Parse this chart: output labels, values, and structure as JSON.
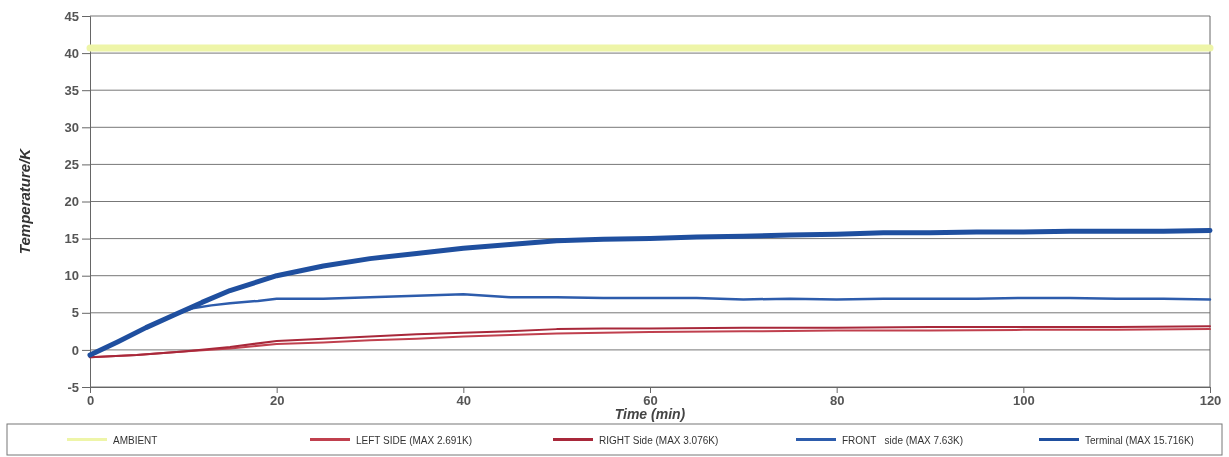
{
  "chart_data": {
    "type": "line",
    "xlabel": "Time (min)",
    "ylabel": "Temperature/K",
    "xlim": [
      0,
      120
    ],
    "xticks": [
      0,
      20,
      40,
      60,
      80,
      100,
      120
    ],
    "ylim": [
      -5,
      45
    ],
    "yticks": [
      -5,
      0,
      5,
      10,
      15,
      20,
      25,
      30,
      35,
      40,
      45
    ],
    "grid": "y",
    "legend": "bottom",
    "series": [
      {
        "name": "AMBIENT",
        "color": "#eef5a8",
        "x": [
          0,
          20,
          40,
          60,
          80,
          100,
          120
        ],
        "values": [
          40.7,
          40.7,
          40.7,
          40.7,
          40.7,
          40.7,
          40.7
        ]
      },
      {
        "name": "LEFT SIDE (MAX 2.691K)",
        "color": "#c0404e",
        "x": [
          0,
          5,
          10,
          15,
          20,
          25,
          30,
          35,
          40,
          45,
          50,
          55,
          60,
          70,
          80,
          90,
          100,
          110,
          120
        ],
        "values": [
          -1,
          -0.7,
          -0.2,
          0.2,
          0.8,
          1.0,
          1.3,
          1.5,
          1.8,
          2.0,
          2.2,
          2.3,
          2.4,
          2.5,
          2.6,
          2.6,
          2.7,
          2.7,
          2.8
        ]
      },
      {
        "name": "RIGHT Side (MAX 3.076K)",
        "color": "#a8283a",
        "x": [
          0,
          5,
          10,
          15,
          20,
          25,
          30,
          35,
          40,
          45,
          50,
          55,
          60,
          70,
          80,
          90,
          100,
          110,
          120
        ],
        "values": [
          -1,
          -0.7,
          -0.2,
          0.4,
          1.2,
          1.5,
          1.8,
          2.1,
          2.3,
          2.5,
          2.8,
          2.9,
          2.9,
          3.0,
          3.0,
          3.1,
          3.1,
          3.1,
          3.2
        ]
      },
      {
        "name": "FRONT   side (MAX 7.63K)",
        "color": "#2d5cac",
        "x": [
          0,
          3,
          6,
          9,
          11,
          13,
          15,
          18,
          20,
          25,
          30,
          35,
          40,
          45,
          50,
          55,
          60,
          65,
          70,
          75,
          80,
          85,
          90,
          95,
          100,
          105,
          110,
          115,
          120
        ],
        "values": [
          -0.7,
          1.1,
          3.0,
          4.7,
          5.6,
          6.0,
          6.3,
          6.6,
          6.9,
          6.9,
          7.1,
          7.3,
          7.5,
          7.1,
          7.1,
          7.0,
          7.0,
          7.0,
          6.8,
          6.9,
          6.8,
          6.9,
          6.9,
          6.9,
          7.0,
          7.0,
          6.9,
          6.9,
          6.8
        ]
      },
      {
        "name": "Terminal (MAX 15.716K)",
        "color": "#1f4f9f",
        "x": [
          0,
          3,
          6,
          9,
          12,
          15,
          18,
          20,
          25,
          30,
          35,
          40,
          45,
          50,
          55,
          60,
          65,
          70,
          75,
          80,
          85,
          90,
          95,
          100,
          105,
          110,
          115,
          120
        ],
        "values": [
          -0.7,
          1.1,
          3.0,
          4.7,
          6.4,
          8.0,
          9.2,
          10.0,
          11.3,
          12.3,
          13.0,
          13.7,
          14.2,
          14.7,
          14.9,
          15.0,
          15.2,
          15.3,
          15.5,
          15.6,
          15.8,
          15.8,
          15.9,
          15.9,
          16.0,
          16.0,
          16.0,
          16.1
        ]
      }
    ]
  }
}
